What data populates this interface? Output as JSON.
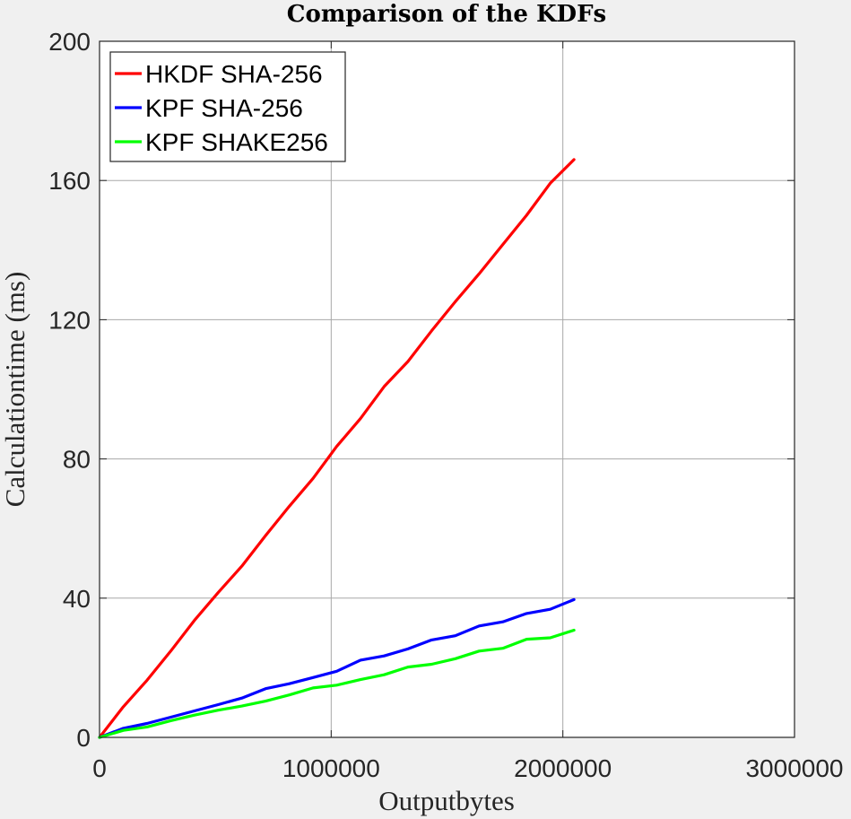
{
  "chart_data": {
    "type": "line",
    "title": "Comparison of the KDFs",
    "xlabel": "Outputbytes",
    "ylabel": "Calculationtime (ms)",
    "xlim": [
      0,
      3000000
    ],
    "ylim": [
      0,
      200
    ],
    "xticks": [
      0,
      1000000,
      2000000,
      3000000
    ],
    "xtick_labels": [
      "0",
      "1000000",
      "2000000",
      "3000000"
    ],
    "yticks": [
      0,
      40,
      80,
      120,
      160,
      200
    ],
    "ytick_labels": [
      "0",
      "40",
      "80",
      "120",
      "160",
      "200"
    ],
    "grid": true,
    "legend_position": "top-left",
    "x": [
      0,
      102400,
      204800,
      307200,
      409600,
      512000,
      614400,
      716800,
      819200,
      921600,
      1024000,
      1126400,
      1228800,
      1331200,
      1433600,
      1536000,
      1638400,
      1740800,
      1843200,
      1945600,
      2048000
    ],
    "series": [
      {
        "name": "HKDF SHA-256",
        "color": "#ff0000",
        "values": [
          0,
          8.8,
          16.4,
          24.8,
          33.6,
          41.6,
          49.2,
          58.0,
          66.4,
          74.4,
          83.6,
          91.6,
          100.8,
          108.0,
          116.8,
          125.2,
          133.2,
          141.6,
          150.0,
          159.2,
          166.0
        ]
      },
      {
        "name": "KPF SHA-256",
        "color": "#0000ff",
        "values": [
          0,
          2.6,
          4.0,
          5.8,
          7.6,
          9.4,
          11.3,
          14.0,
          15.4,
          17.2,
          19.0,
          22.2,
          23.4,
          25.4,
          28.0,
          29.2,
          32.0,
          33.2,
          35.6,
          36.8,
          39.6
        ]
      },
      {
        "name": "KPF SHAKE256",
        "color": "#00ff00",
        "values": [
          0,
          2.0,
          3.0,
          4.8,
          6.4,
          7.8,
          9.0,
          10.4,
          12.2,
          14.2,
          15.0,
          16.6,
          18.0,
          20.2,
          21.0,
          22.6,
          24.8,
          25.6,
          28.2,
          28.6,
          30.8
        ]
      }
    ]
  }
}
